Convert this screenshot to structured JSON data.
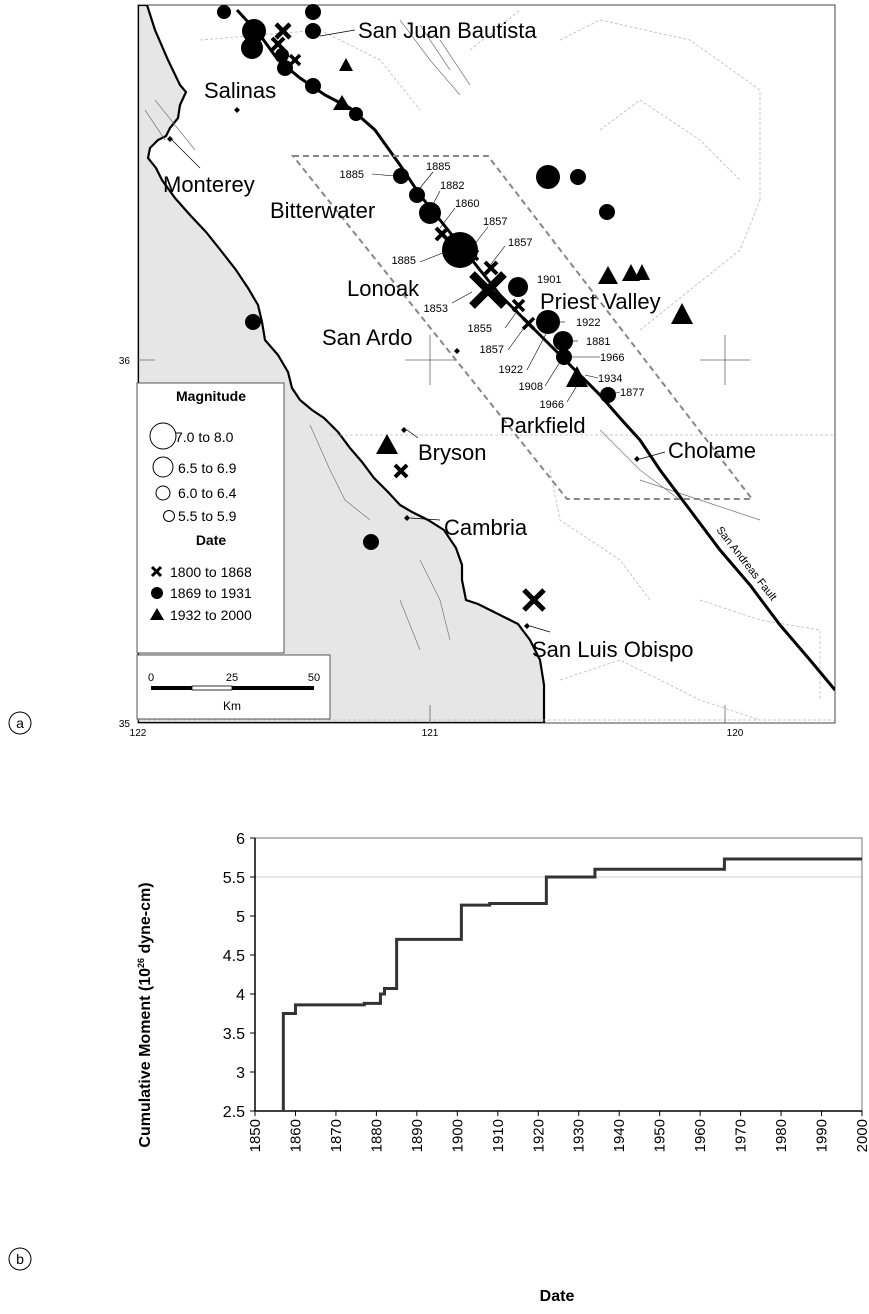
{
  "panel_a": {
    "panel_label": "a",
    "axis": {
      "lon_labels": [
        "122",
        "121",
        "120"
      ],
      "lat_labels": [
        "36",
        "35"
      ]
    },
    "places": [
      {
        "name": "San Juan Bautista"
      },
      {
        "name": "Salinas"
      },
      {
        "name": "Monterey"
      },
      {
        "name": "Bitterwater"
      },
      {
        "name": "Lonoak"
      },
      {
        "name": "Priest Valley"
      },
      {
        "name": "San Ardo"
      },
      {
        "name": "Parkfield"
      },
      {
        "name": "Cholame"
      },
      {
        "name": "Bryson"
      },
      {
        "name": "Cambria"
      },
      {
        "name": "San Luis Obispo"
      }
    ],
    "fault_label": "San Andreas Fault",
    "event_years": [
      "1885",
      "1885",
      "1882",
      "1860",
      "1857",
      "1885",
      "1857",
      "1901",
      "1853",
      "1855",
      "1922",
      "1857",
      "1881",
      "1922",
      "1966",
      "1908",
      "1934",
      "1877",
      "1966"
    ],
    "legend": {
      "magnitude_title": "Magnitude",
      "magnitude_classes": [
        "7.0 to 8.0",
        "6.5 to 6.9",
        "6.0 to 6.4",
        "5.5 to 5.9"
      ],
      "date_title": "Date",
      "date_classes": [
        "1800 to 1868",
        "1869 to 1931",
        "1932 to 2000"
      ],
      "date_symbols": [
        "cross",
        "circle",
        "triangle"
      ]
    },
    "scale_bar": {
      "ticks": [
        "0",
        "25",
        "50"
      ],
      "unit": "Km"
    }
  },
  "panel_b": {
    "panel_label": "b"
  },
  "chart_data": {
    "type": "line",
    "xlabel": "Date",
    "ylabel_main": "Cumulative Moment (10",
    "ylabel_sup": "26",
    "ylabel_tail": " dyne-cm)",
    "xlim": [
      1850,
      2000
    ],
    "ylim": [
      2.5,
      6
    ],
    "x_ticks": [
      "1850",
      "1860",
      "1870",
      "1880",
      "1890",
      "1900",
      "1910",
      "1920",
      "1930",
      "1940",
      "1950",
      "1960",
      "1970",
      "1980",
      "1990",
      "2000"
    ],
    "y_ticks": [
      "2.5",
      "3",
      "3.5",
      "4",
      "4.5",
      "5",
      "5.5",
      "6"
    ],
    "grid": {
      "y_major": [
        5.5,
        6
      ]
    },
    "series": [
      {
        "step": "post",
        "x": [
          1857,
          1857,
          1860,
          1877,
          1881,
          1882,
          1885,
          1901,
          1908,
          1922,
          1934,
          1966,
          2000
        ],
        "y": [
          2.5,
          3.75,
          3.86,
          3.88,
          4.0,
          4.07,
          4.7,
          5.14,
          5.16,
          5.5,
          5.6,
          5.73,
          5.73
        ]
      }
    ]
  }
}
